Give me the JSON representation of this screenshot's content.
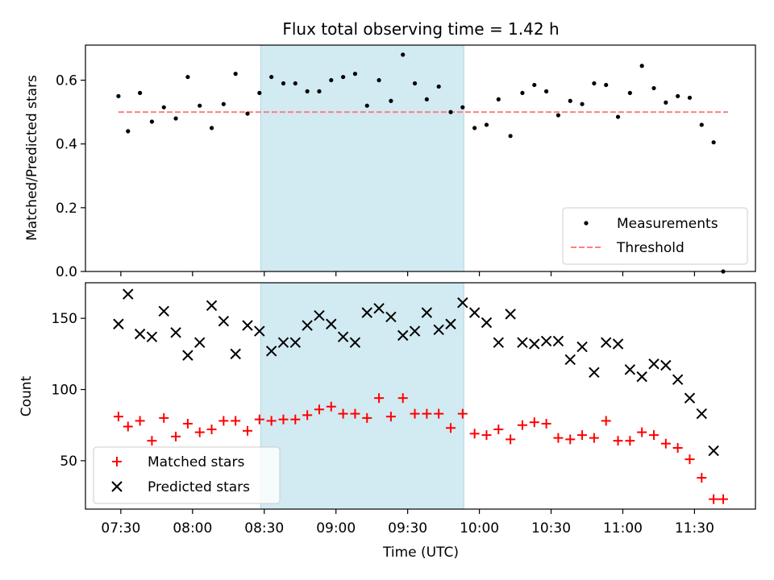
{
  "chart_data": {
    "type": "scatter",
    "title": "Flux total observing time = 1.42 h",
    "xlabel": "Time (UTC)",
    "x_tick_labels": [
      "07:30",
      "08:00",
      "08:30",
      "09:00",
      "09:30",
      "10:00",
      "10:30",
      "11:00",
      "11:30"
    ],
    "x_tick_minutes": [
      450,
      480,
      510,
      540,
      570,
      600,
      630,
      660,
      690
    ],
    "xlim_minutes": [
      435.2,
      715.5
    ],
    "highlight_span_minutes": [
      508.5,
      593.5
    ],
    "colors": {
      "highlight": "#add8e6",
      "measurements": "#000000",
      "threshold": "#ff7f7f",
      "matched": "#ff0000",
      "predicted": "#000000"
    },
    "top_panel": {
      "ylabel": "Matched/Predicted stars",
      "ylim": [
        0,
        0.71
      ],
      "y_ticks": [
        0.0,
        0.2,
        0.4,
        0.6
      ],
      "y_tick_labels": [
        "0.0",
        "0.2",
        "0.4",
        "0.6"
      ],
      "threshold": 0.5,
      "threshold_x_minutes": [
        449,
        704
      ],
      "legend": {
        "position": "lower-right",
        "entries": [
          "Measurements",
          "Threshold"
        ]
      },
      "measurements": {
        "x": [
          449,
          453,
          458,
          463,
          468,
          473,
          478,
          483,
          488,
          493,
          498,
          503,
          508,
          513,
          518,
          523,
          528,
          533,
          538,
          543,
          548,
          553,
          558,
          563,
          568,
          573,
          578,
          583,
          588,
          593,
          598,
          603,
          608,
          613,
          618,
          623,
          628,
          633,
          638,
          643,
          648,
          653,
          658,
          663,
          668,
          673,
          678,
          683,
          688,
          693,
          698,
          702
        ],
        "y": [
          0.55,
          0.44,
          0.56,
          0.47,
          0.515,
          0.48,
          0.61,
          0.52,
          0.45,
          0.525,
          0.62,
          0.495,
          0.56,
          0.61,
          0.59,
          0.59,
          0.565,
          0.565,
          0.6,
          0.61,
          0.62,
          0.52,
          0.6,
          0.535,
          0.68,
          0.59,
          0.54,
          0.58,
          0.5,
          0.515,
          0.45,
          0.46,
          0.54,
          0.425,
          0.56,
          0.585,
          0.565,
          0.49,
          0.535,
          0.525,
          0.59,
          0.585,
          0.485,
          0.56,
          0.645,
          0.575,
          0.53,
          0.55,
          0.545,
          0.46,
          0.405,
          0.0
        ]
      }
    },
    "bottom_panel": {
      "ylabel": "Count",
      "ylim": [
        16,
        175
      ],
      "y_ticks": [
        50,
        100,
        150
      ],
      "y_tick_labels": [
        "50",
        "100",
        "150"
      ],
      "legend": {
        "position": "lower-left",
        "entries": [
          "Matched stars",
          "Predicted stars"
        ]
      },
      "matched": {
        "x": [
          449,
          453,
          458,
          463,
          468,
          473,
          478,
          483,
          488,
          493,
          498,
          503,
          508,
          513,
          518,
          523,
          528,
          533,
          538,
          543,
          548,
          553,
          558,
          563,
          568,
          573,
          578,
          583,
          588,
          593,
          598,
          603,
          608,
          613,
          618,
          623,
          628,
          633,
          638,
          643,
          648,
          653,
          658,
          663,
          668,
          673,
          678,
          683,
          688,
          693,
          698,
          702
        ],
        "y": [
          81,
          74,
          78,
          64,
          80,
          67,
          76,
          70,
          72,
          78,
          78,
          71,
          79,
          78,
          79,
          79,
          82,
          86,
          88,
          83,
          83,
          80,
          94,
          81,
          94,
          83,
          83,
          83,
          73,
          83,
          69,
          68,
          72,
          65,
          75,
          77,
          76,
          66,
          65,
          68,
          66,
          78,
          64,
          64,
          70,
          68,
          62,
          59,
          51,
          38,
          23,
          23
        ]
      },
      "predicted": {
        "x": [
          449,
          453,
          458,
          463,
          468,
          473,
          478,
          483,
          488,
          493,
          498,
          503,
          508,
          513,
          518,
          523,
          528,
          533,
          538,
          543,
          548,
          553,
          558,
          563,
          568,
          573,
          578,
          583,
          588,
          593,
          598,
          603,
          608,
          613,
          618,
          623,
          628,
          633,
          638,
          643,
          648,
          653,
          658,
          663,
          668,
          673,
          678,
          683,
          688,
          693,
          698
        ],
        "y": [
          146,
          167,
          139,
          137,
          155,
          140,
          124,
          133,
          159,
          148,
          125,
          145,
          141,
          127,
          133,
          133,
          145,
          152,
          146,
          137,
          133,
          154,
          157,
          151,
          138,
          141,
          154,
          142,
          146,
          161,
          154,
          147,
          133,
          153,
          133,
          132,
          134,
          134,
          121,
          130,
          112,
          133,
          132,
          114,
          109,
          118,
          117,
          107,
          94,
          83,
          57
        ]
      }
    }
  }
}
